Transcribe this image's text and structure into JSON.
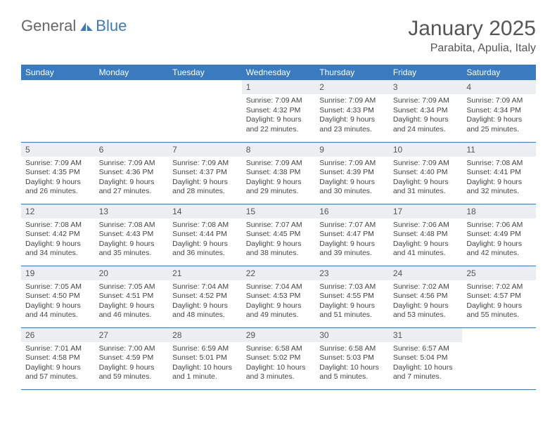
{
  "logo": {
    "gray": "General",
    "blue": "Blue"
  },
  "title": "January 2025",
  "location": "Parabita, Apulia, Italy",
  "colors": {
    "header_bg": "#3a7bbf",
    "header_fg": "#ffffff",
    "daynum_bg": "#eceff1",
    "divider": "#3a7bbf",
    "text": "#444444",
    "bg": "#ffffff"
  },
  "weekdays": [
    "Sunday",
    "Monday",
    "Tuesday",
    "Wednesday",
    "Thursday",
    "Friday",
    "Saturday"
  ],
  "grid": [
    [
      null,
      null,
      null,
      {
        "n": "1",
        "sr": "7:09 AM",
        "ss": "4:32 PM",
        "dl": "9 hours and 22 minutes."
      },
      {
        "n": "2",
        "sr": "7:09 AM",
        "ss": "4:33 PM",
        "dl": "9 hours and 23 minutes."
      },
      {
        "n": "3",
        "sr": "7:09 AM",
        "ss": "4:34 PM",
        "dl": "9 hours and 24 minutes."
      },
      {
        "n": "4",
        "sr": "7:09 AM",
        "ss": "4:34 PM",
        "dl": "9 hours and 25 minutes."
      }
    ],
    [
      {
        "n": "5",
        "sr": "7:09 AM",
        "ss": "4:35 PM",
        "dl": "9 hours and 26 minutes."
      },
      {
        "n": "6",
        "sr": "7:09 AM",
        "ss": "4:36 PM",
        "dl": "9 hours and 27 minutes."
      },
      {
        "n": "7",
        "sr": "7:09 AM",
        "ss": "4:37 PM",
        "dl": "9 hours and 28 minutes."
      },
      {
        "n": "8",
        "sr": "7:09 AM",
        "ss": "4:38 PM",
        "dl": "9 hours and 29 minutes."
      },
      {
        "n": "9",
        "sr": "7:09 AM",
        "ss": "4:39 PM",
        "dl": "9 hours and 30 minutes."
      },
      {
        "n": "10",
        "sr": "7:09 AM",
        "ss": "4:40 PM",
        "dl": "9 hours and 31 minutes."
      },
      {
        "n": "11",
        "sr": "7:08 AM",
        "ss": "4:41 PM",
        "dl": "9 hours and 32 minutes."
      }
    ],
    [
      {
        "n": "12",
        "sr": "7:08 AM",
        "ss": "4:42 PM",
        "dl": "9 hours and 34 minutes."
      },
      {
        "n": "13",
        "sr": "7:08 AM",
        "ss": "4:43 PM",
        "dl": "9 hours and 35 minutes."
      },
      {
        "n": "14",
        "sr": "7:08 AM",
        "ss": "4:44 PM",
        "dl": "9 hours and 36 minutes."
      },
      {
        "n": "15",
        "sr": "7:07 AM",
        "ss": "4:45 PM",
        "dl": "9 hours and 38 minutes."
      },
      {
        "n": "16",
        "sr": "7:07 AM",
        "ss": "4:47 PM",
        "dl": "9 hours and 39 minutes."
      },
      {
        "n": "17",
        "sr": "7:06 AM",
        "ss": "4:48 PM",
        "dl": "9 hours and 41 minutes."
      },
      {
        "n": "18",
        "sr": "7:06 AM",
        "ss": "4:49 PM",
        "dl": "9 hours and 42 minutes."
      }
    ],
    [
      {
        "n": "19",
        "sr": "7:05 AM",
        "ss": "4:50 PM",
        "dl": "9 hours and 44 minutes."
      },
      {
        "n": "20",
        "sr": "7:05 AM",
        "ss": "4:51 PM",
        "dl": "9 hours and 46 minutes."
      },
      {
        "n": "21",
        "sr": "7:04 AM",
        "ss": "4:52 PM",
        "dl": "9 hours and 48 minutes."
      },
      {
        "n": "22",
        "sr": "7:04 AM",
        "ss": "4:53 PM",
        "dl": "9 hours and 49 minutes."
      },
      {
        "n": "23",
        "sr": "7:03 AM",
        "ss": "4:55 PM",
        "dl": "9 hours and 51 minutes."
      },
      {
        "n": "24",
        "sr": "7:02 AM",
        "ss": "4:56 PM",
        "dl": "9 hours and 53 minutes."
      },
      {
        "n": "25",
        "sr": "7:02 AM",
        "ss": "4:57 PM",
        "dl": "9 hours and 55 minutes."
      }
    ],
    [
      {
        "n": "26",
        "sr": "7:01 AM",
        "ss": "4:58 PM",
        "dl": "9 hours and 57 minutes."
      },
      {
        "n": "27",
        "sr": "7:00 AM",
        "ss": "4:59 PM",
        "dl": "9 hours and 59 minutes."
      },
      {
        "n": "28",
        "sr": "6:59 AM",
        "ss": "5:01 PM",
        "dl": "10 hours and 1 minute."
      },
      {
        "n": "29",
        "sr": "6:58 AM",
        "ss": "5:02 PM",
        "dl": "10 hours and 3 minutes."
      },
      {
        "n": "30",
        "sr": "6:58 AM",
        "ss": "5:03 PM",
        "dl": "10 hours and 5 minutes."
      },
      {
        "n": "31",
        "sr": "6:57 AM",
        "ss": "5:04 PM",
        "dl": "10 hours and 7 minutes."
      },
      null
    ]
  ],
  "labels": {
    "sunrise": "Sunrise: ",
    "sunset": "Sunset: ",
    "daylight": "Daylight: "
  }
}
